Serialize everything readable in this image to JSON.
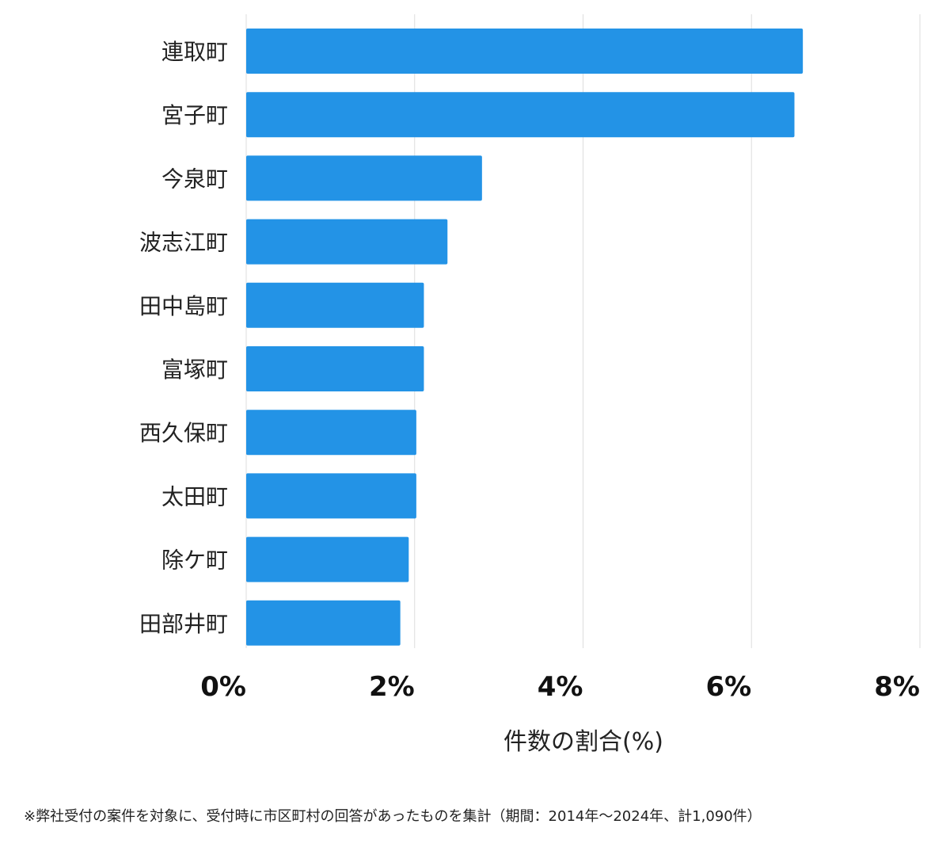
{
  "chart_data": {
    "type": "bar",
    "orientation": "horizontal",
    "categories": [
      "連取町",
      "宮子町",
      "今泉町",
      "波志江町",
      "田中島町",
      "富塚町",
      "西久保町",
      "太田町",
      "除ケ町",
      "田部井町"
    ],
    "values": [
      6.61,
      6.51,
      2.8,
      2.39,
      2.11,
      2.11,
      2.02,
      2.02,
      1.93,
      1.83
    ],
    "xlabel": "件数の割合(%)",
    "xlim": [
      0,
      8
    ],
    "xticks": [
      0,
      2,
      4,
      6,
      8
    ],
    "xtick_labels": [
      "0%",
      "2%",
      "4%",
      "6%",
      "8%"
    ],
    "grid": true,
    "bar_color": "#2393E6",
    "grid_color": "#DDDDDD"
  },
  "footnote": "※弊社受付の案件を対象に、受付時に市区町村の回答があったものを集計（期間：2014年〜2024年、計1,090件）"
}
